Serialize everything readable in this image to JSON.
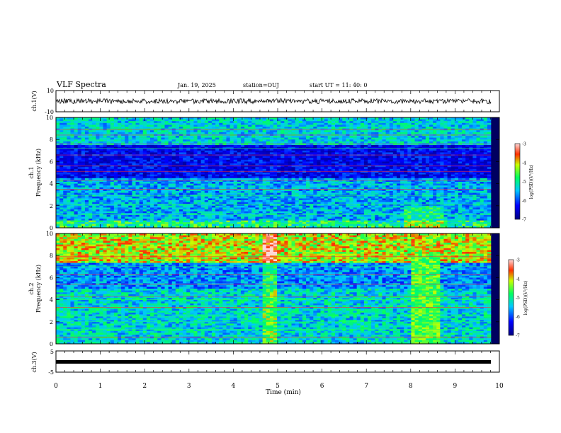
{
  "header": {
    "title": "VLF Spectra",
    "date": "Jan. 19, 2025",
    "station": "station=OUJ",
    "start": "start UT =  11: 40: 0"
  },
  "chart_data": [
    {
      "type": "line",
      "panel": "ch1-waveform",
      "ylabel": "ch.1(V)",
      "ylim": [
        -10,
        10
      ],
      "yticks": [
        "10",
        "-10"
      ],
      "xlim": [
        0,
        10
      ],
      "series": [
        {
          "x": [
            0,
            9.83
          ],
          "y_mean": [
            3,
            3
          ],
          "y_amplitude": 1.5
        }
      ]
    },
    {
      "type": "heatmap",
      "panel": "ch1-spectrogram",
      "ylabel": "ch.1 Frequency (kHz)",
      "ylim": [
        0,
        10
      ],
      "yticks": [
        "0",
        "2",
        "4",
        "6",
        "8",
        "10"
      ],
      "xlim": [
        0,
        10
      ],
      "colorbar": {
        "label": "log(PSD)(V²/Hz)",
        "range": [
          -7,
          -3
        ],
        "ticks": [
          "-3",
          "-4",
          "-5",
          "-6",
          "-7"
        ]
      }
    },
    {
      "type": "heatmap",
      "panel": "ch2-spectrogram",
      "ylabel": "ch.2 Frequency (kHz)",
      "ylim": [
        0,
        10
      ],
      "yticks": [
        "0",
        "2",
        "4",
        "6",
        "8",
        "10"
      ],
      "xlim": [
        0,
        10
      ],
      "colorbar": {
        "label": "log(PSD)(V²/Hz)",
        "range": [
          -7,
          -3
        ],
        "ticks": [
          "-3",
          "-4",
          "-5",
          "-6",
          "-7"
        ]
      }
    },
    {
      "type": "line",
      "panel": "ch3-waveform",
      "ylabel": "ch.3(V)",
      "ylim": [
        -5,
        5
      ],
      "yticks": [
        "5",
        "-5"
      ],
      "xlim": [
        0,
        10
      ],
      "series": [
        {
          "x": [
            0,
            9.83
          ],
          "y": [
            0,
            0
          ]
        }
      ]
    }
  ],
  "xaxis": {
    "label": "Time (min)",
    "ticks": [
      "0",
      "1",
      "2",
      "3",
      "4",
      "5",
      "6",
      "7",
      "8",
      "9",
      "10"
    ]
  },
  "colors": {
    "dark": "#000080",
    "blue": "#0000ff",
    "cyan": "#00ffff",
    "green": "#00ff00",
    "yellow": "#ffff00",
    "red": "#ff0000"
  }
}
